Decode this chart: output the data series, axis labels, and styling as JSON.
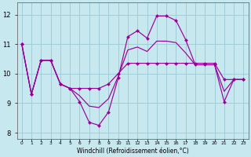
{
  "x": [
    0,
    1,
    2,
    3,
    4,
    5,
    6,
    7,
    8,
    9,
    10,
    11,
    12,
    13,
    14,
    15,
    16,
    17,
    18,
    19,
    20,
    21,
    22,
    23
  ],
  "line_jagged": [
    11.0,
    9.3,
    10.45,
    10.45,
    9.65,
    9.5,
    9.05,
    8.35,
    8.25,
    8.7,
    9.85,
    11.25,
    11.45,
    11.2,
    11.95,
    11.95,
    11.8,
    11.15,
    10.3,
    10.3,
    10.3,
    9.05,
    9.8,
    9.8
  ],
  "line_flat": [
    11.0,
    9.3,
    10.45,
    10.45,
    9.65,
    9.5,
    9.5,
    9.5,
    9.5,
    9.65,
    10.0,
    10.35,
    10.35,
    10.35,
    10.35,
    10.35,
    10.35,
    10.35,
    10.35,
    10.35,
    10.35,
    9.8,
    9.8,
    9.8
  ],
  "line_mid": [
    11.0,
    9.3,
    10.45,
    10.45,
    9.65,
    9.5,
    9.25,
    8.9,
    8.85,
    9.15,
    9.9,
    10.8,
    10.9,
    10.75,
    11.1,
    11.1,
    11.05,
    10.7,
    10.3,
    10.3,
    10.3,
    9.4,
    9.8,
    9.8
  ],
  "line_color": "#990099",
  "bg_color": "#c8e8f0",
  "grid_color": "#a0ccd8",
  "xlabel": "Windchill (Refroidissement éolien,°C)",
  "ylim": [
    7.8,
    12.4
  ],
  "xlim": [
    -0.5,
    23.5
  ],
  "yticks": [
    8,
    9,
    10,
    11,
    12
  ],
  "figsize": [
    3.2,
    2.0
  ],
  "dpi": 100
}
